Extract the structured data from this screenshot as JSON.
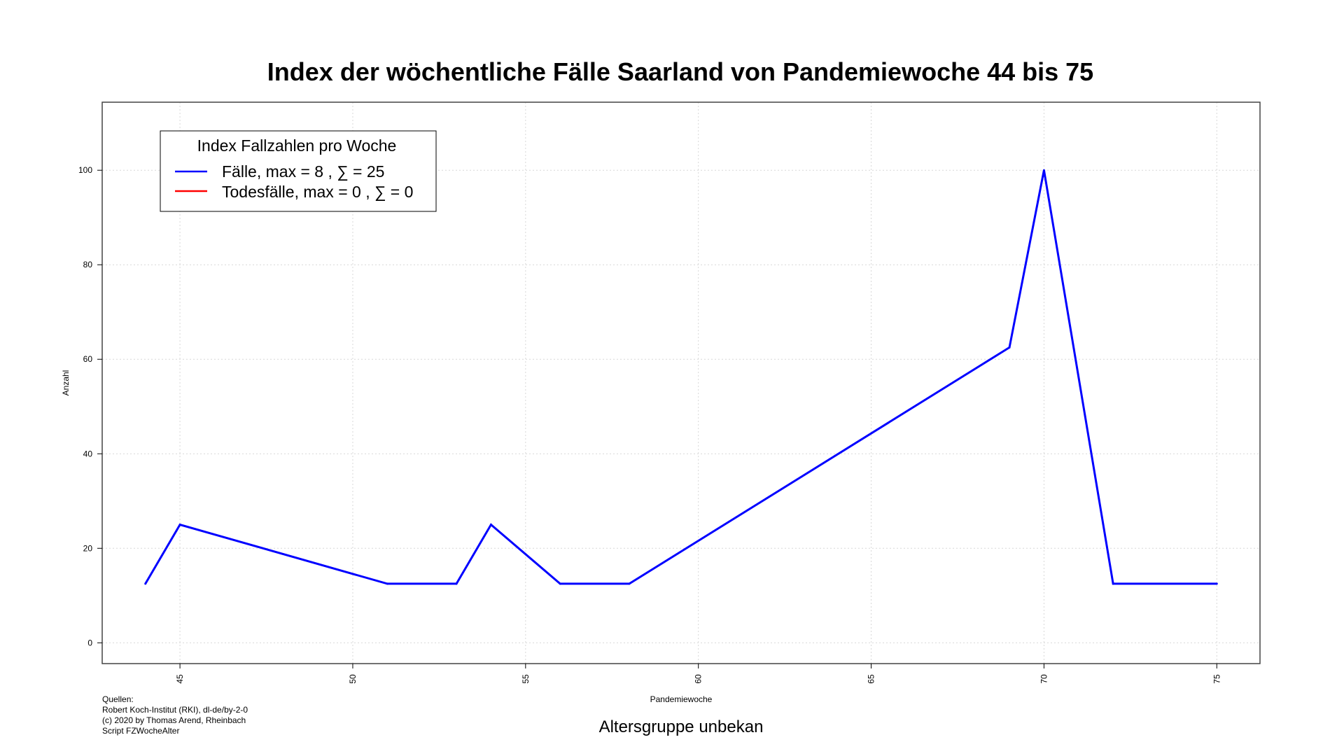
{
  "chart_data": {
    "type": "line",
    "title": "Index der wöchentliche Fälle Saarland von Pandemiewoche 44 bis 75",
    "xlabel": "Pandemiewoche",
    "ylabel": "Anzahl",
    "subtitle": "Altersgruppe unbekan",
    "xlim": [
      42.75,
      76.25
    ],
    "ylim": [
      -4.4,
      114.4
    ],
    "xticks": [
      45,
      50,
      55,
      60,
      65,
      70,
      75
    ],
    "yticks": [
      0,
      20,
      40,
      60,
      80,
      100
    ],
    "grid": true,
    "legend": {
      "title": "Index Fallzahlen pro Woche",
      "position": "top-left",
      "entries": [
        {
          "label": "Fälle, max = 8 ,  ∑  = 25",
          "color": "#0000ff"
        },
        {
          "label": "Todesfälle, max = 0 ,  ∑  = 0",
          "color": "#ff0000"
        }
      ]
    },
    "series": [
      {
        "name": "Fälle",
        "color": "#0000ff",
        "x": [
          44,
          45,
          51,
          53,
          54,
          56,
          58,
          69,
          70,
          72,
          75
        ],
        "values": [
          12.5,
          25,
          12.5,
          12.5,
          25,
          12.5,
          12.5,
          62.5,
          100,
          12.5,
          12.5
        ]
      }
    ]
  },
  "sources": {
    "lines": [
      "Quellen:",
      "Robert Koch-Institut (RKI), dl-de/by-2-0",
      "(c) 2020 by Thomas Arend, Rheinbach",
      "Script FZWocheAlter"
    ]
  }
}
